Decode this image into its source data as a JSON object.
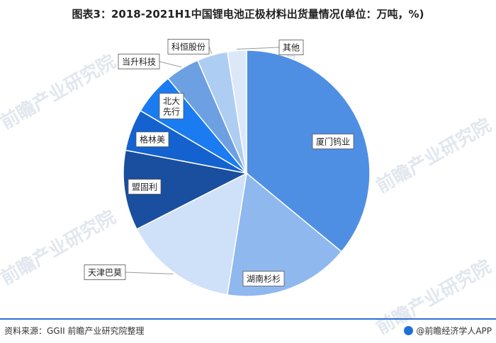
{
  "title": "图表3：2018-2021H1中国锂电池正极材料出货量情况(单位：万吨，%)",
  "source": "资料来源：GGII 前瞻产业研究院整理",
  "brand": "@前瞻经济学人APP",
  "watermark": "前瞻产业研究院",
  "chart_data": {
    "type": "pie",
    "title": "图表3：2018-2021H1中国锂电池正极材料出货量情况(单位：万吨，%)",
    "start_angle_deg": 0,
    "direction": "clockwise",
    "slices": [
      {
        "label": "厦门钨业",
        "value": 36.0,
        "color": "#4f8fe3"
      },
      {
        "label": "湖南杉杉",
        "value": 16.5,
        "color": "#8fb8ef"
      },
      {
        "label": "天津巴莫",
        "value": 15.0,
        "color": "#cfe1f8"
      },
      {
        "label": "盟固利",
        "value": 10.5,
        "color": "#1a4e9e"
      },
      {
        "label": "格林美",
        "value": 5.5,
        "color": "#1362cf"
      },
      {
        "label": "北大先行",
        "value": 5.5,
        "color": "#1a7cf0"
      },
      {
        "label": "当升科技",
        "value": 4.5,
        "color": "#6d9fe3"
      },
      {
        "label": "科恒股份",
        "value": 4.0,
        "color": "#aecdf3"
      },
      {
        "label": "其他",
        "value": 2.5,
        "color": "#dbe8f8"
      }
    ]
  }
}
